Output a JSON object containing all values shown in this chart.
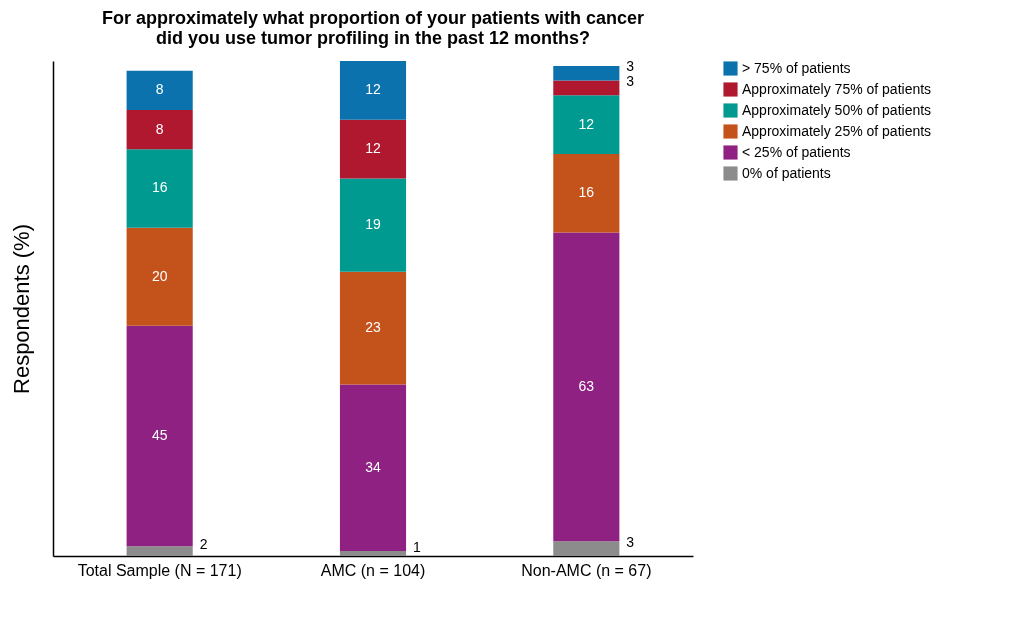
{
  "chart_data": {
    "type": "bar",
    "stacked": true,
    "title": "For approximately what proportion of your patients with cancer did you use tumor profiling in the past 12 months?",
    "ylabel": "Respondents (%)",
    "categories": [
      "Total Sample (N = 171)",
      "AMC (n = 104)",
      "Non-AMC (n = 67)"
    ],
    "series": [
      {
        "name": "0% of patients",
        "color": "#8c8c8c",
        "values": [
          2,
          1,
          3
        ]
      },
      {
        "name": "< 25% of patients",
        "color": "#8e2181",
        "values": [
          45,
          34,
          63
        ]
      },
      {
        "name": "Approximately 25% of patients",
        "color": "#c4531b",
        "values": [
          20,
          23,
          16
        ]
      },
      {
        "name": "Approximately 50% of patients",
        "color": "#009a90",
        "values": [
          16,
          19,
          12
        ]
      },
      {
        "name": "Approximately 75% of patients",
        "color": "#b0182f",
        "values": [
          8,
          12,
          3
        ]
      },
      {
        "name": "> 75% of patients",
        "color": "#0b72ad",
        "values": [
          8,
          12,
          3
        ]
      }
    ],
    "data_labels": true,
    "legend": "top right",
    "grid": false,
    "tick_labels": "x"
  }
}
